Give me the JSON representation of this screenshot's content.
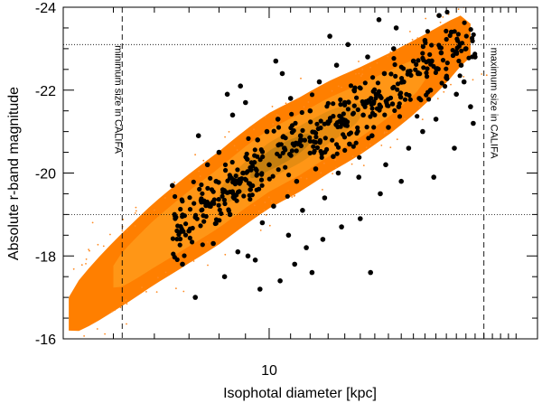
{
  "chart_data": {
    "type": "scatter",
    "xlabel": "Isophotal diameter [kpc]",
    "ylabel": "Absolute r-band magnitude",
    "x_scale": "log",
    "xlim": [
      4.0,
      33.0
    ],
    "ylim": [
      -16,
      -24
    ],
    "y_inverted": true,
    "x_ticks": [
      10
    ],
    "y_ticks": [
      -16,
      -18,
      -20,
      -22,
      -24
    ],
    "grid": false,
    "colors": {
      "density_outer": "#ff7f00",
      "density_mid": "#ff9a1a",
      "density_core": "#e08a10",
      "density_peak": "#b5780e",
      "sparse_points": "#ff8a20",
      "califa_points": "#000000"
    },
    "reference_lines": {
      "min_size_diameter": 5.2,
      "max_size_diameter": 26.0,
      "horizontal_magnitudes": [
        -23.1,
        -19.0
      ]
    },
    "annotations": {
      "min_label": "minimum size in CALIFA",
      "max_label": "maximum size in CALIFA"
    },
    "density_ridge": [
      {
        "d": 4.1,
        "m": -16.6
      },
      {
        "d": 5.0,
        "m": -17.5
      },
      {
        "d": 6.0,
        "m": -18.3
      },
      {
        "d": 7.0,
        "m": -18.9
      },
      {
        "d": 8.0,
        "m": -19.4
      },
      {
        "d": 9.0,
        "m": -19.9
      },
      {
        "d": 10.0,
        "m": -20.3
      },
      {
        "d": 11.5,
        "m": -20.7
      },
      {
        "d": 13.0,
        "m": -21.1
      },
      {
        "d": 15.0,
        "m": -21.5
      },
      {
        "d": 17.0,
        "m": -21.9
      },
      {
        "d": 19.0,
        "m": -22.3
      },
      {
        "d": 21.0,
        "m": -22.7
      },
      {
        "d": 23.5,
        "m": -23.2
      }
    ],
    "califa_sample": [
      {
        "d": 6.8,
        "m": -17.8
      },
      {
        "d": 7.0,
        "m": -18.6
      },
      {
        "d": 7.2,
        "m": -17.0
      },
      {
        "d": 7.4,
        "m": -19.3
      },
      {
        "d": 7.6,
        "m": -20.2
      },
      {
        "d": 7.8,
        "m": -18.3
      },
      {
        "d": 8.0,
        "m": -20.5
      },
      {
        "d": 8.2,
        "m": -17.5
      },
      {
        "d": 8.4,
        "m": -19.0
      },
      {
        "d": 8.5,
        "m": -21.4
      },
      {
        "d": 8.7,
        "m": -18.1
      },
      {
        "d": 8.9,
        "m": -20.0
      },
      {
        "d": 9.0,
        "m": -21.7
      },
      {
        "d": 9.2,
        "m": -19.6
      },
      {
        "d": 9.4,
        "m": -17.9
      },
      {
        "d": 9.5,
        "m": -20.8
      },
      {
        "d": 9.7,
        "m": -18.8
      },
      {
        "d": 9.9,
        "m": -21.0
      },
      {
        "d": 10.0,
        "m": -20.2
      },
      {
        "d": 10.2,
        "m": -19.2
      },
      {
        "d": 10.4,
        "m": -21.3
      },
      {
        "d": 10.5,
        "m": -17.4
      },
      {
        "d": 10.7,
        "m": -20.6
      },
      {
        "d": 10.9,
        "m": -18.5
      },
      {
        "d": 11.0,
        "m": -21.8
      },
      {
        "d": 11.3,
        "m": -19.8
      },
      {
        "d": 11.5,
        "m": -20.9
      },
      {
        "d": 11.8,
        "m": -18.2
      },
      {
        "d": 12.0,
        "m": -21.5
      },
      {
        "d": 12.3,
        "m": -20.1
      },
      {
        "d": 12.5,
        "m": -22.2
      },
      {
        "d": 12.8,
        "m": -19.4
      },
      {
        "d": 13.0,
        "m": -21.2
      },
      {
        "d": 13.3,
        "m": -20.4
      },
      {
        "d": 13.5,
        "m": -22.6
      },
      {
        "d": 13.8,
        "m": -18.7
      },
      {
        "d": 14.0,
        "m": -21.7
      },
      {
        "d": 14.3,
        "m": -20.7
      },
      {
        "d": 14.6,
        "m": -22.0
      },
      {
        "d": 14.9,
        "m": -19.9
      },
      {
        "d": 15.2,
        "m": -21.4
      },
      {
        "d": 15.5,
        "m": -22.8
      },
      {
        "d": 15.8,
        "m": -20.9
      },
      {
        "d": 16.1,
        "m": -21.9
      },
      {
        "d": 16.4,
        "m": -19.5
      },
      {
        "d": 16.7,
        "m": -22.4
      },
      {
        "d": 17.0,
        "m": -21.1
      },
      {
        "d": 17.4,
        "m": -23.0
      },
      {
        "d": 17.8,
        "m": -21.6
      },
      {
        "d": 18.2,
        "m": -22.2
      },
      {
        "d": 18.6,
        "m": -20.6
      },
      {
        "d": 19.0,
        "m": -22.7
      },
      {
        "d": 19.5,
        "m": -21.8
      },
      {
        "d": 20.0,
        "m": -23.2
      },
      {
        "d": 20.5,
        "m": -22.0
      },
      {
        "d": 21.0,
        "m": -21.3
      },
      {
        "d": 21.5,
        "m": -22.9
      },
      {
        "d": 22.0,
        "m": -22.3
      },
      {
        "d": 22.5,
        "m": -23.4
      },
      {
        "d": 23.0,
        "m": -21.9
      },
      {
        "d": 23.5,
        "m": -22.6
      },
      {
        "d": 24.0,
        "m": -23.0
      },
      {
        "d": 24.5,
        "m": -21.6
      },
      {
        "d": 9.1,
        "m": -18.0
      },
      {
        "d": 10.6,
        "m": -22.4
      },
      {
        "d": 12.1,
        "m": -17.6
      },
      {
        "d": 15.0,
        "m": -18.9
      },
      {
        "d": 18.0,
        "m": -19.8
      },
      {
        "d": 8.3,
        "m": -21.9
      },
      {
        "d": 11.6,
        "m": -19.1
      },
      {
        "d": 13.6,
        "m": -20.0
      },
      {
        "d": 16.8,
        "m": -20.2
      },
      {
        "d": 19.8,
        "m": -21.0
      },
      {
        "d": 22.8,
        "m": -20.6
      },
      {
        "d": 14.2,
        "m": -23.1
      },
      {
        "d": 17.6,
        "m": -23.5
      },
      {
        "d": 20.8,
        "m": -19.9
      },
      {
        "d": 7.9,
        "m": -19.8
      },
      {
        "d": 9.6,
        "m": -17.2
      },
      {
        "d": 11.2,
        "m": -17.8
      },
      {
        "d": 12.7,
        "m": -18.4
      },
      {
        "d": 15.7,
        "m": -17.6
      },
      {
        "d": 6.5,
        "m": -19.7
      },
      {
        "d": 7.3,
        "m": -20.9
      },
      {
        "d": 8.8,
        "m": -22.1
      },
      {
        "d": 10.3,
        "m": -22.7
      },
      {
        "d": 13.1,
        "m": -23.3
      },
      {
        "d": 16.3,
        "m": -23.7
      },
      {
        "d": 21.3,
        "m": -23.8
      },
      {
        "d": 23.8,
        "m": -22.2
      },
      {
        "d": 25.0,
        "m": -22.8
      },
      {
        "d": 24.8,
        "m": -21.2
      }
    ]
  }
}
